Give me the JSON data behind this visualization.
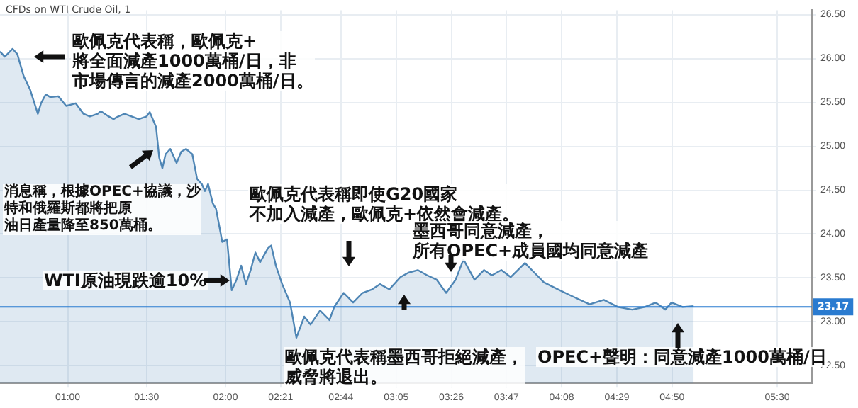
{
  "chart_data": {
    "type": "area",
    "title": "CFDs on WTI Crude Oil, 1",
    "x": [
      0.57,
      0.6,
      0.65,
      0.68,
      0.72,
      0.76,
      0.81,
      0.83,
      0.86,
      0.89,
      0.94,
      0.99,
      1.05,
      1.1,
      1.14,
      1.19,
      1.21,
      1.26,
      1.29,
      1.32,
      1.36,
      1.45,
      1.5,
      1.52,
      1.56,
      1.58,
      1.6,
      1.62,
      1.65,
      1.69,
      1.72,
      1.75,
      1.79,
      1.82,
      1.85,
      1.87,
      1.89,
      1.92,
      1.94,
      1.96,
      1.98,
      2.01,
      2.04,
      2.07,
      2.1,
      2.13,
      2.16,
      2.19,
      2.22,
      2.27,
      2.29,
      2.32,
      2.36,
      2.41,
      2.45,
      2.5,
      2.54,
      2.6,
      2.66,
      2.69,
      2.75,
      2.81,
      2.87,
      2.93,
      2.98,
      3.04,
      3.11,
      3.16,
      3.22,
      3.28,
      3.34,
      3.4,
      3.46,
      3.51,
      3.58,
      3.64,
      3.69,
      3.75,
      3.81,
      3.9,
      3.96,
      4.02,
      4.11,
      4.19,
      4.31,
      4.4,
      4.49,
      4.58,
      4.66,
      4.73,
      4.79,
      4.83,
      4.9,
      4.97
    ],
    "series": [
      {
        "color": "#4f86b5",
        "values": [
          26.08,
          26.02,
          26.11,
          26.05,
          25.8,
          25.65,
          25.37,
          25.49,
          25.59,
          25.56,
          25.57,
          25.46,
          25.49,
          25.37,
          25.34,
          25.37,
          25.4,
          25.34,
          25.31,
          25.34,
          25.37,
          25.31,
          25.34,
          25.39,
          25.22,
          24.87,
          24.75,
          24.91,
          24.97,
          24.81,
          24.94,
          24.97,
          24.91,
          24.63,
          24.57,
          24.49,
          24.57,
          24.35,
          24.29,
          24.1,
          23.91,
          23.94,
          23.36,
          23.48,
          23.64,
          23.43,
          23.59,
          23.79,
          23.68,
          23.84,
          23.87,
          23.64,
          23.43,
          23.22,
          22.82,
          23.06,
          22.97,
          23.13,
          23.02,
          23.17,
          23.33,
          23.22,
          23.33,
          23.37,
          23.43,
          23.37,
          23.51,
          23.56,
          23.59,
          23.53,
          23.48,
          23.33,
          23.48,
          23.71,
          23.48,
          23.59,
          23.53,
          23.59,
          23.51,
          23.67,
          23.56,
          23.45,
          23.37,
          23.3,
          23.2,
          23.25,
          23.17,
          23.14,
          23.17,
          23.22,
          23.14,
          23.22,
          23.17,
          23.18
        ]
      }
    ],
    "xlim": [
      0.57,
      5.72
    ],
    "xticks": [
      {
        "value": 1,
        "label": "01:00"
      },
      {
        "value": 1.5,
        "label": "01:30"
      },
      {
        "value": 2,
        "label": "02:00"
      },
      {
        "value": 2.35,
        "label": "02:21"
      },
      {
        "value": 2.733,
        "label": "02:44"
      },
      {
        "value": 3.083,
        "label": "03:05"
      },
      {
        "value": 3.433,
        "label": "03:26"
      },
      {
        "value": 3.783,
        "label": "03:47"
      },
      {
        "value": 4.133,
        "label": "04:08"
      },
      {
        "value": 4.483,
        "label": "04:29"
      },
      {
        "value": 4.833,
        "label": "04:50"
      },
      {
        "value": 5.5,
        "label": "05:30"
      }
    ],
    "ylim": [
      22.3,
      26.55
    ],
    "yticks": [
      {
        "value": 22.5,
        "label": "22.50"
      },
      {
        "value": 23,
        "label": "23.00"
      },
      {
        "value": 23.5,
        "label": "23.50"
      },
      {
        "value": 24,
        "label": "24.00"
      },
      {
        "value": 24.5,
        "label": "24.50"
      },
      {
        "value": 25,
        "label": "25.00"
      },
      {
        "value": 25.5,
        "label": "25.50"
      },
      {
        "value": 26,
        "label": "26.00"
      },
      {
        "value": 26.5,
        "label": "26.50"
      }
    ],
    "ref_lines": [
      {
        "axis": "y",
        "value": 23.17,
        "label": "23.17",
        "color": "#2a7bd0"
      }
    ],
    "grid": true,
    "legend": false,
    "marker": "none",
    "line_style": "solid",
    "annotations": [
      "歐佩克代表稱，歐佩克+將全面減產1000萬桶/日，非市場傳言的減產2000萬桶/日。",
      "消息稱，根據OPEC+協議，沙特和俄羅斯都將把原油日產量降至850萬桶。",
      "WTI原油現跌逾10%",
      "歐佩克代表稱即使G20國家不加入減產，歐佩克+依然會減產。",
      "墨西哥同意減產，所有OPEC+成員國均同意減產",
      "歐佩克代表稱墨西哥拒絕減產，威脅將退出。",
      "OPEC+聲明：同意減產1000萬桶/日"
    ]
  }
}
